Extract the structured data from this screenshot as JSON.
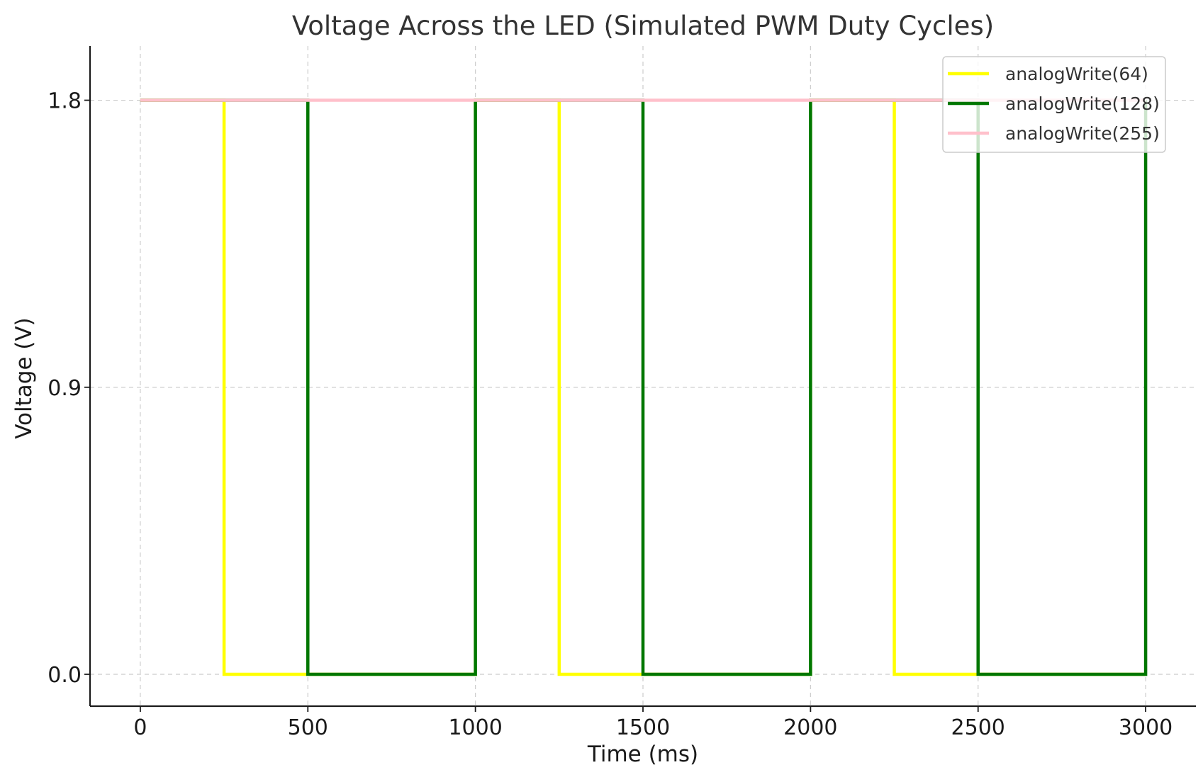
{
  "chart_data": {
    "type": "line",
    "title": "Voltage Across the LED (Simulated PWM Duty Cycles)",
    "xlabel": "Time (ms)",
    "ylabel": "Voltage (V)",
    "xlim": [
      -150,
      3150
    ],
    "ylim": [
      -0.1,
      1.97
    ],
    "xticks": [
      0,
      500,
      1000,
      1500,
      2000,
      2500,
      3000
    ],
    "xtick_labels": [
      "0",
      "500",
      "1000",
      "1500",
      "2000",
      "2500",
      "3000"
    ],
    "yticks": [
      0.0,
      0.9,
      1.8
    ],
    "ytick_labels": [
      "0.0",
      "0.9",
      "1.8"
    ],
    "grid": true,
    "legend_position": "top-right",
    "series": [
      {
        "name": "analogWrite(64)",
        "color": "#ffff00",
        "x": [
          0,
          250,
          250,
          1000,
          1000,
          1250,
          1250,
          2000,
          2000,
          2250,
          2250,
          3000
        ],
        "y": [
          1.8,
          1.8,
          0.0,
          0.0,
          1.8,
          1.8,
          0.0,
          0.0,
          1.8,
          1.8,
          0.0,
          0.0
        ]
      },
      {
        "name": "analogWrite(128)",
        "color": "#007700",
        "x": [
          0,
          500,
          500,
          1000,
          1000,
          1500,
          1500,
          2000,
          2000,
          2500,
          2500,
          3000,
          3000
        ],
        "y": [
          1.8,
          1.8,
          0.0,
          0.0,
          1.8,
          1.8,
          0.0,
          0.0,
          1.8,
          1.8,
          0.0,
          0.0,
          1.8
        ]
      },
      {
        "name": "analogWrite(255)",
        "color": "#ffc0cb",
        "x": [
          0,
          3000
        ],
        "y": [
          1.8,
          1.8
        ]
      }
    ]
  }
}
